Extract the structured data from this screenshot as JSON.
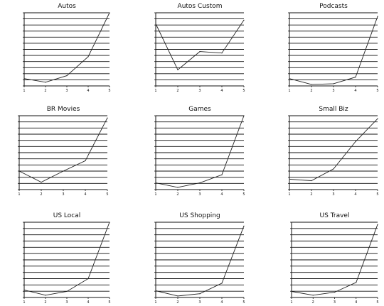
{
  "chart_data": [
    {
      "type": "line",
      "title": "Autos",
      "x": [
        1,
        2,
        3,
        4,
        5
      ],
      "values": [
        0.1,
        0.05,
        0.14,
        0.4,
        1.0
      ],
      "xticks": [
        "1",
        "2",
        "3",
        "4",
        "5"
      ],
      "grid": true
    },
    {
      "type": "line",
      "title": "Autos Custom",
      "x": [
        1,
        2,
        3,
        4,
        5
      ],
      "values": [
        0.85,
        0.22,
        0.47,
        0.45,
        0.9
      ],
      "xticks": [
        "1",
        "2",
        "3",
        "4",
        "5"
      ],
      "grid": true
    },
    {
      "type": "line",
      "title": "Podcasts",
      "x": [
        1,
        2,
        3,
        4,
        5
      ],
      "values": [
        0.1,
        0.02,
        0.03,
        0.12,
        0.95
      ],
      "xticks": [
        "1",
        "2",
        "3",
        "4",
        "5"
      ],
      "grid": true
    },
    {
      "type": "line",
      "title": "BR Movies",
      "x": [
        1,
        2,
        3,
        4,
        5
      ],
      "values": [
        0.25,
        0.1,
        0.25,
        0.39,
        0.97
      ],
      "xticks": [
        "1",
        "2",
        "3",
        "4",
        "5"
      ],
      "grid": true
    },
    {
      "type": "line",
      "title": "Games",
      "x": [
        1,
        2,
        3,
        4,
        5
      ],
      "values": [
        0.09,
        0.03,
        0.09,
        0.2,
        1.0
      ],
      "xticks": [
        "1",
        "2",
        "3",
        "4",
        "5"
      ],
      "grid": true
    },
    {
      "type": "line",
      "title": "Small Biz",
      "x": [
        1,
        2,
        3,
        4,
        5
      ],
      "values": [
        0.14,
        0.12,
        0.28,
        0.65,
        0.96
      ],
      "xticks": [
        "1",
        "2",
        "3",
        "4",
        "5"
      ],
      "grid": true
    },
    {
      "type": "line",
      "title": "US Local",
      "x": [
        1,
        2,
        3,
        4,
        5
      ],
      "values": [
        0.1,
        0.03,
        0.08,
        0.25,
        1.0
      ],
      "xticks": [
        "1",
        "2",
        "3",
        "4",
        "5"
      ],
      "grid": true
    },
    {
      "type": "line",
      "title": "US Shopping",
      "x": [
        1,
        2,
        3,
        4,
        5
      ],
      "values": [
        0.09,
        0.02,
        0.05,
        0.19,
        0.95
      ],
      "xticks": [
        "1",
        "2",
        "3",
        "4",
        "5"
      ],
      "grid": true
    },
    {
      "type": "line",
      "title": "US Travel",
      "x": [
        1,
        2,
        3,
        4,
        5
      ],
      "values": [
        0.08,
        0.03,
        0.07,
        0.2,
        0.97
      ],
      "xticks": [
        "1",
        "2",
        "3",
        "4",
        "5"
      ],
      "grid": true
    }
  ]
}
